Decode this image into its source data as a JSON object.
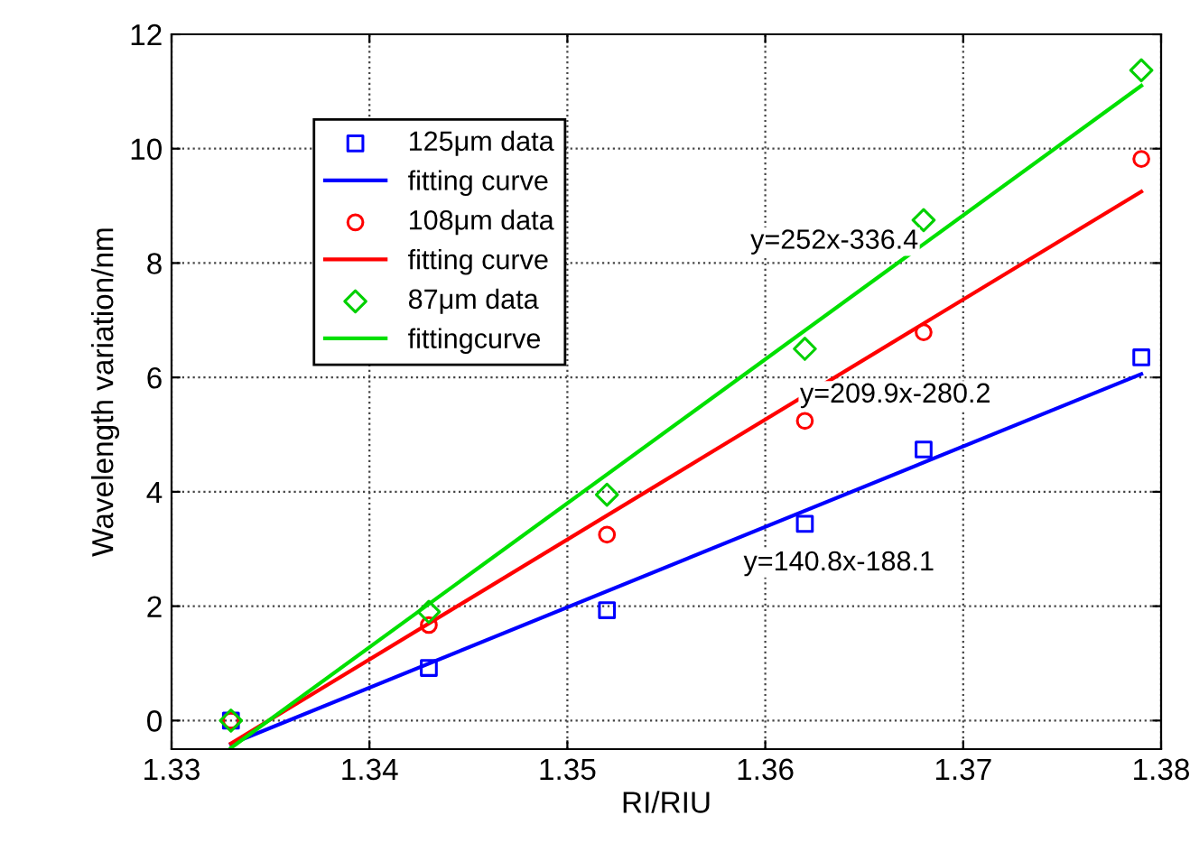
{
  "chart_data": {
    "type": "scatter",
    "xlabel": "RI/RIU",
    "ylabel": "Wavelength variation/nm",
    "xlim": [
      1.33,
      1.38
    ],
    "ylim": [
      -0.5,
      12
    ],
    "xticks": [
      1.33,
      1.34,
      1.35,
      1.36,
      1.37,
      1.38
    ],
    "yticks": [
      0,
      2,
      4,
      6,
      8,
      10,
      12
    ],
    "grid": true,
    "legend": "top left",
    "series": [
      {
        "name": "125μm data",
        "marker": "square",
        "color": "#0000ff",
        "x": [
          1.333,
          1.343,
          1.352,
          1.362,
          1.368,
          1.379
        ],
        "values": [
          0,
          0.92,
          1.93,
          3.44,
          4.74,
          6.35
        ]
      },
      {
        "name": "fitting curve",
        "type": "line",
        "marker": "none",
        "color": "#0000ff",
        "x": [
          1.333,
          1.379
        ],
        "values": [
          -0.41,
          6.06
        ]
      },
      {
        "name": "108μm data",
        "marker": "circle",
        "color": "#ff0000",
        "x": [
          1.333,
          1.343,
          1.352,
          1.362,
          1.368,
          1.379
        ],
        "values": [
          0,
          1.67,
          3.25,
          5.24,
          6.79,
          9.82
        ]
      },
      {
        "name": "fitting curve",
        "type": "line",
        "marker": "none",
        "color": "#ff0000",
        "x": [
          1.333,
          1.379
        ],
        "values": [
          -0.4,
          9.25
        ]
      },
      {
        "name": "87μm data",
        "marker": "diamond",
        "color": "#00d000",
        "x": [
          1.333,
          1.343,
          1.352,
          1.362,
          1.368,
          1.379
        ],
        "values": [
          0,
          1.9,
          3.95,
          6.5,
          8.75,
          11.37
        ]
      },
      {
        "name": "fittingcurve",
        "type": "line",
        "marker": "none",
        "color": "#00e000",
        "x": [
          1.333,
          1.379
        ],
        "values": [
          -0.48,
          11.1
        ]
      }
    ],
    "annotations": [
      "y=252x-336.4",
      "y=209.9x-280.2",
      "y=140.8x-188.1"
    ]
  }
}
